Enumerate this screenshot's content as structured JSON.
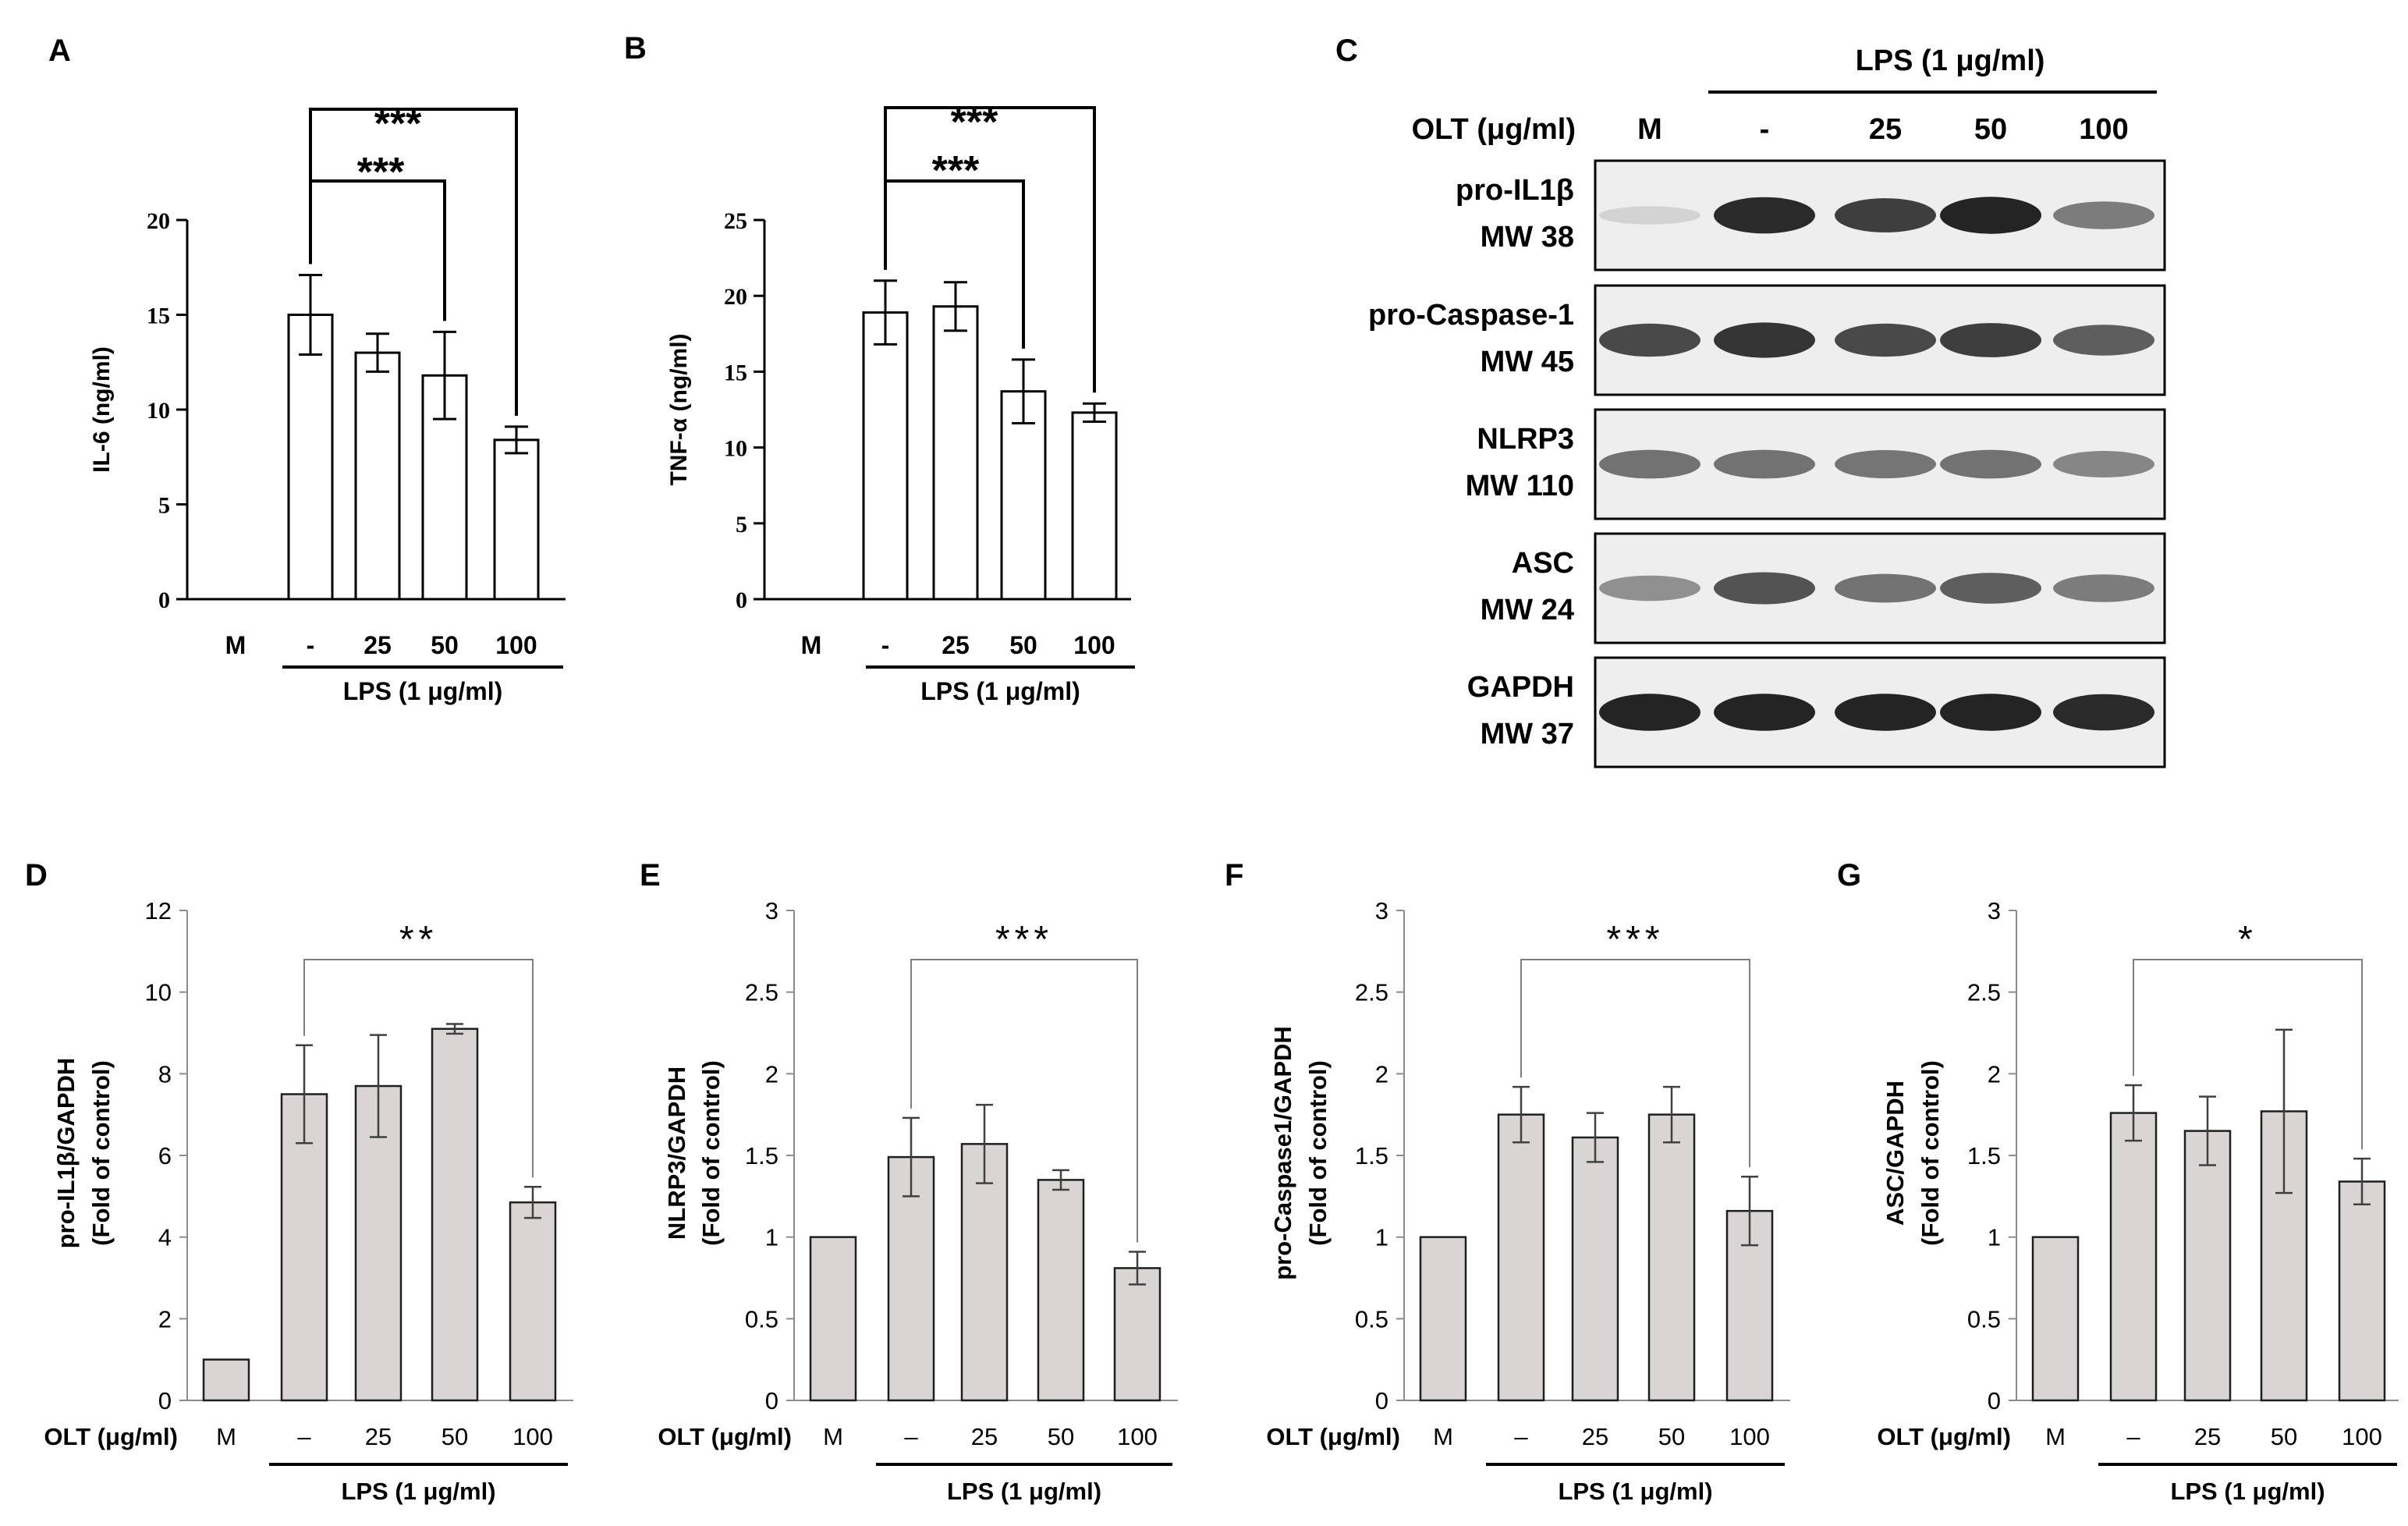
{
  "panels_top": [
    {
      "letter": "A",
      "ylabel": "IL-6 (ng/ml)",
      "yticks": [
        "0",
        "5",
        "10",
        "15",
        "20"
      ],
      "ymax": 20,
      "categories": [
        "M",
        "-",
        "25",
        "50",
        "100"
      ],
      "group_label": "LPS (1 μg/ml)",
      "sig": [
        {
          "label": "***",
          "from": 1,
          "to": 4
        },
        {
          "label": "***",
          "from": 1,
          "to": 3
        }
      ]
    },
    {
      "letter": "B",
      "ylabel": "TNF-α (ng/ml)",
      "yticks": [
        "0",
        "5",
        "10",
        "15",
        "20",
        "25"
      ],
      "ymax": 25,
      "categories": [
        "M",
        "-",
        "25",
        "50",
        "100"
      ],
      "group_label": "LPS (1 μg/ml)",
      "sig": [
        {
          "label": "***",
          "from": 1,
          "to": 4
        },
        {
          "label": "***",
          "from": 1,
          "to": 3
        }
      ]
    }
  ],
  "blot": {
    "letter": "C",
    "lps_label": "LPS (1 μg/ml)",
    "olt_label": "OLT (μg/ml)",
    "lanes": [
      "M",
      "-",
      "25",
      "50",
      "100"
    ],
    "rows": [
      {
        "name": "pro-IL1β",
        "mw": "MW 38",
        "intensity": [
          0.12,
          0.95,
          0.85,
          0.98,
          0.55
        ]
      },
      {
        "name": "pro-Caspase-1",
        "mw": "MW 45",
        "intensity": [
          0.8,
          0.9,
          0.8,
          0.85,
          0.7
        ]
      },
      {
        "name": "NLRP3",
        "mw": "MW 110",
        "intensity": [
          0.6,
          0.6,
          0.58,
          0.6,
          0.5
        ]
      },
      {
        "name": "ASC",
        "mw": "MW 24",
        "intensity": [
          0.45,
          0.75,
          0.6,
          0.7,
          0.55
        ]
      },
      {
        "name": "GAPDH",
        "mw": "MW 37",
        "intensity": [
          0.98,
          0.98,
          0.98,
          0.98,
          0.95
        ]
      }
    ]
  },
  "panels_bottom": [
    {
      "letter": "D",
      "ylabel": "pro-IL1β/GAPDH",
      "ylabel2": "(Fold of control)",
      "yticks": [
        "0",
        "2",
        "4",
        "6",
        "8",
        "10",
        "12"
      ],
      "ymax": 12,
      "xlabel": "OLT (μg/ml)",
      "categories": [
        "M",
        "–",
        "25",
        "50",
        "100"
      ],
      "group_label": "LPS (1 μg/ml)",
      "sig": {
        "label": "**",
        "from": 1,
        "to": 4
      }
    },
    {
      "letter": "E",
      "ylabel": "NLRP3/GAPDH",
      "ylabel2": "(Fold of control)",
      "yticks": [
        "0",
        "0.5",
        "1",
        "1.5",
        "2",
        "2.5",
        "3"
      ],
      "ymax": 3,
      "xlabel": "OLT (μg/ml)",
      "categories": [
        "M",
        "–",
        "25",
        "50",
        "100"
      ],
      "group_label": "LPS (1 μg/ml)",
      "sig": {
        "label": "***",
        "from": 1,
        "to": 4
      }
    },
    {
      "letter": "F",
      "ylabel": "pro-Caspase1/GAPDH",
      "ylabel2": "(Fold of control)",
      "yticks": [
        "0",
        "0.5",
        "1",
        "1.5",
        "2",
        "2.5",
        "3"
      ],
      "ymax": 3,
      "xlabel": "OLT (μg/ml)",
      "categories": [
        "M",
        "–",
        "25",
        "50",
        "100"
      ],
      "group_label": "LPS (1 μg/ml)",
      "sig": {
        "label": "***",
        "from": 1,
        "to": 4
      }
    },
    {
      "letter": "G",
      "ylabel": "ASC/GAPDH",
      "ylabel2": "(Fold of control)",
      "yticks": [
        "0",
        "0.5",
        "1",
        "1.5",
        "2",
        "2.5",
        "3"
      ],
      "ymax": 3,
      "xlabel": "OLT (μg/ml)",
      "categories": [
        "M",
        "–",
        "25",
        "50",
        "100"
      ],
      "group_label": "LPS (1 μg/ml)",
      "sig": {
        "label": "*",
        "from": 1,
        "to": 4
      }
    }
  ],
  "chart_data": [
    {
      "type": "bar",
      "panel": "A",
      "ylabel": "IL-6 (ng/ml)",
      "ylim": [
        0,
        20
      ],
      "categories": [
        "M",
        "-",
        "25",
        "50",
        "100"
      ],
      "values": [
        0,
        15.0,
        13.0,
        11.8,
        8.4
      ],
      "errors": [
        0,
        2.1,
        1.0,
        2.3,
        0.7
      ]
    },
    {
      "type": "bar",
      "panel": "B",
      "ylabel": "TNF-α (ng/ml)",
      "ylim": [
        0,
        25
      ],
      "categories": [
        "M",
        "-",
        "25",
        "50",
        "100"
      ],
      "values": [
        0,
        18.9,
        19.3,
        13.7,
        12.3
      ],
      "errors": [
        0,
        2.1,
        1.6,
        2.1,
        0.6
      ]
    },
    {
      "type": "bar",
      "panel": "D",
      "ylabel": "pro-IL1β/GAPDH",
      "ylim": [
        0,
        12
      ],
      "categories": [
        "M",
        "–",
        "25",
        "50",
        "100"
      ],
      "values": [
        1.0,
        7.5,
        7.7,
        9.1,
        4.85
      ],
      "errors": [
        0,
        1.2,
        1.25,
        0.12,
        0.38
      ]
    },
    {
      "type": "bar",
      "panel": "E",
      "ylabel": "NLRP3/GAPDH",
      "ylim": [
        0,
        3
      ],
      "categories": [
        "M",
        "–",
        "25",
        "50",
        "100"
      ],
      "values": [
        1.0,
        1.49,
        1.57,
        1.35,
        0.81
      ],
      "errors": [
        0,
        0.24,
        0.24,
        0.06,
        0.1
      ]
    },
    {
      "type": "bar",
      "panel": "F",
      "ylabel": "pro-Caspase1/GAPDH",
      "ylim": [
        0,
        3
      ],
      "categories": [
        "M",
        "–",
        "25",
        "50",
        "100"
      ],
      "values": [
        1.0,
        1.75,
        1.61,
        1.75,
        1.16
      ],
      "errors": [
        0,
        0.17,
        0.15,
        0.17,
        0.21
      ]
    },
    {
      "type": "bar",
      "panel": "G",
      "ylabel": "ASC/GAPDH",
      "ylim": [
        0,
        3
      ],
      "categories": [
        "M",
        "–",
        "25",
        "50",
        "100"
      ],
      "values": [
        1.0,
        1.76,
        1.65,
        1.77,
        1.34
      ],
      "errors": [
        0,
        0.17,
        0.21,
        0.5,
        0.14
      ]
    }
  ]
}
